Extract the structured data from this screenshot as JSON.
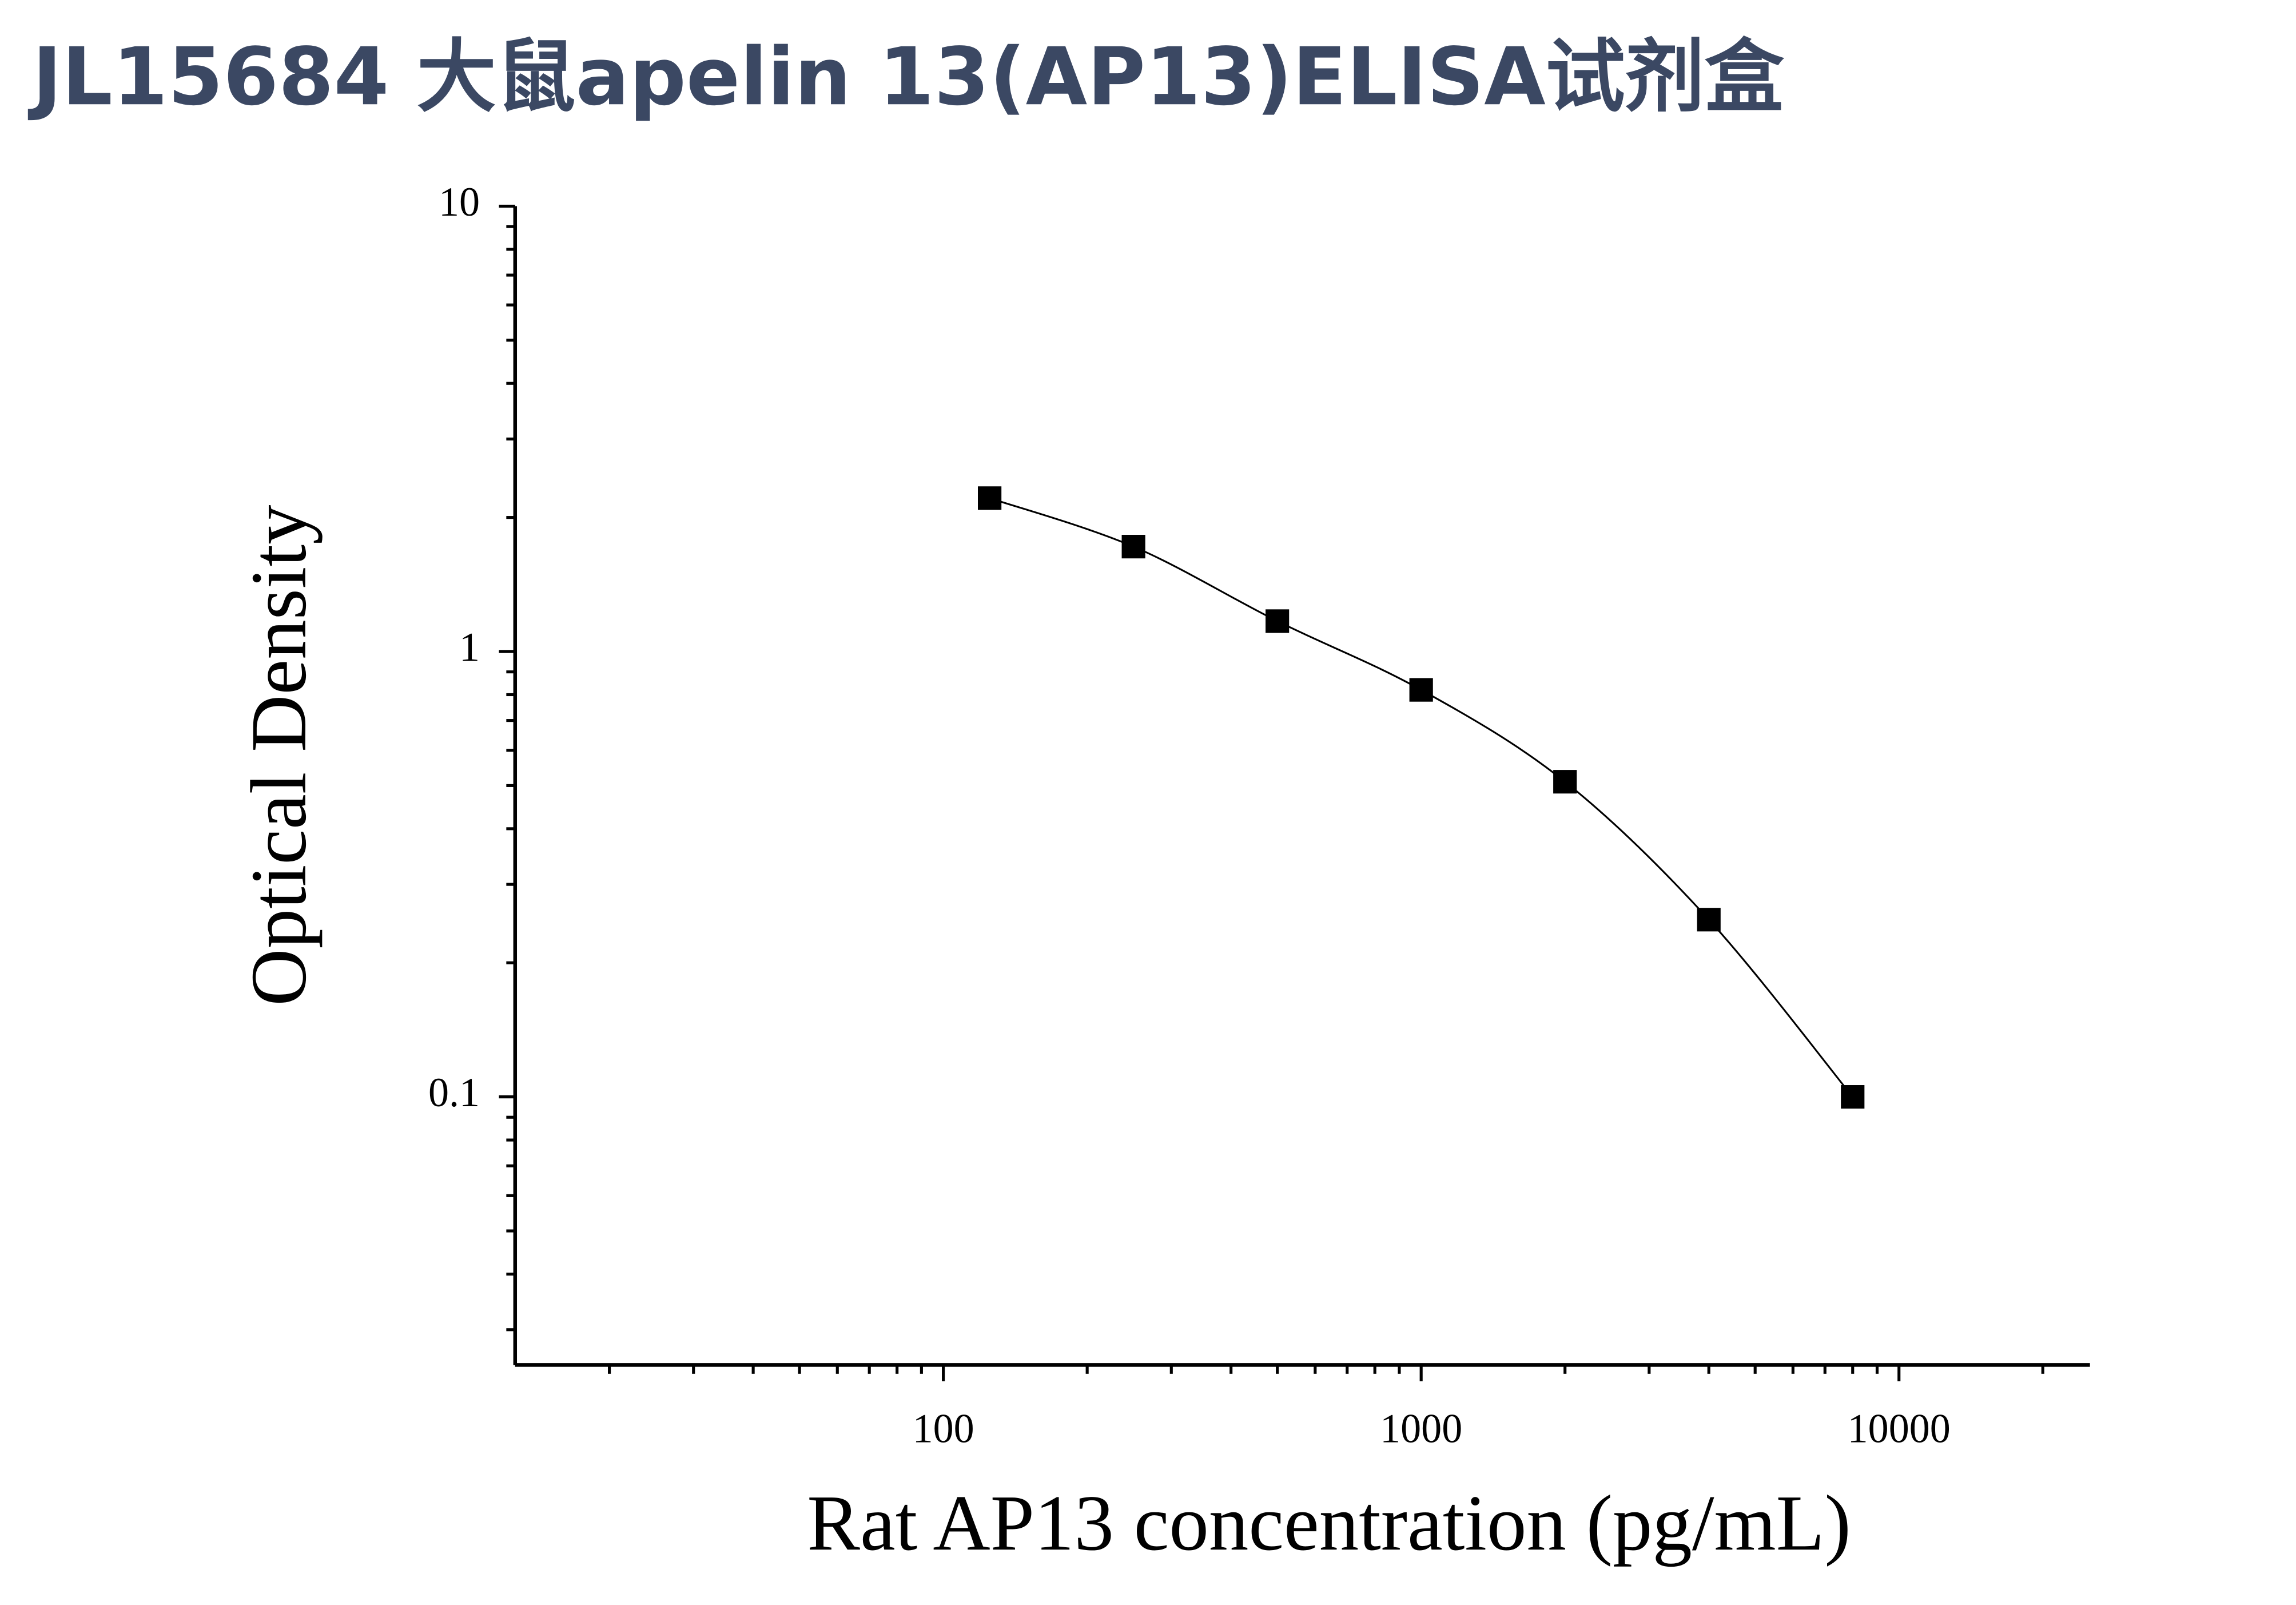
{
  "chart_data": {
    "type": "scatter",
    "title": "JL15684 大鼠apelin 13(AP13)ELISA试剂盒",
    "x_label": "Rat AP13 concentration (pg/mL)",
    "y_label": "Optical Density",
    "x_scale": "log",
    "y_scale": "log",
    "xlim": [
      12.7,
      25100
    ],
    "ylim": [
      0.025,
      10
    ],
    "xticks": [
      100,
      1000,
      10000
    ],
    "yticks": [
      0.1,
      1,
      10
    ],
    "x_minor_ticks": [
      20,
      30,
      40,
      50,
      60,
      70,
      80,
      90,
      200,
      300,
      400,
      500,
      600,
      700,
      800,
      900,
      2000,
      3000,
      4000,
      5000,
      6000,
      7000,
      8000,
      9000,
      20000
    ],
    "y_minor_ticks": [
      0.03,
      0.04,
      0.05,
      0.06,
      0.07,
      0.08,
      0.09,
      0.2,
      0.3,
      0.4,
      0.5,
      0.6,
      0.7,
      0.8,
      0.9,
      2,
      3,
      4,
      5,
      6,
      7,
      8,
      9
    ],
    "series": [
      {
        "color": "#000000",
        "x": [
          125,
          250,
          500,
          1000,
          2000,
          4000,
          8000
        ],
        "values": [
          2.21,
          1.72,
          1.17,
          0.82,
          0.51,
          0.25,
          0.1
        ]
      }
    ]
  }
}
